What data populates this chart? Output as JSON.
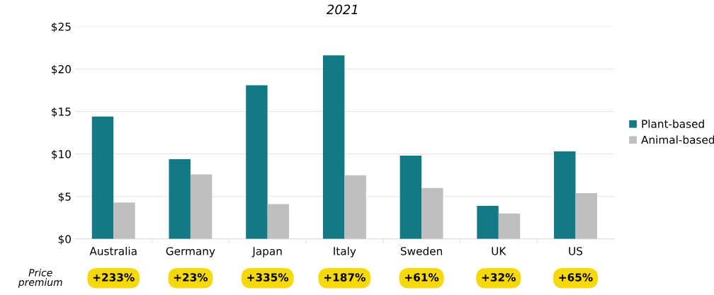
{
  "chart_data": {
    "type": "bar",
    "subtitle": "2021",
    "categories": [
      "Australia",
      "Germany",
      "Japan",
      "Italy",
      "Sweden",
      "UK",
      "US"
    ],
    "series": [
      {
        "name": "Plant-based",
        "color": "#137a85",
        "values": [
          14.4,
          9.4,
          18.1,
          21.6,
          9.8,
          3.9,
          10.3
        ]
      },
      {
        "name": "Animal-based",
        "color": "#bfbfbf",
        "values": [
          4.3,
          7.6,
          4.1,
          7.5,
          6.0,
          3.0,
          5.4
        ]
      }
    ],
    "ylim": [
      0,
      25
    ],
    "yticks": [
      {
        "value": 0,
        "label": "$0"
      },
      {
        "value": 5,
        "label": "$5"
      },
      {
        "value": 10,
        "label": "$10"
      },
      {
        "value": 15,
        "label": "$15"
      },
      {
        "value": 20,
        "label": "$20"
      },
      {
        "value": 25,
        "label": "$25"
      }
    ],
    "grid": "y",
    "legend": "right",
    "annotations": [
      "Price premium",
      "+233%",
      "+23%",
      "+335%",
      "+187%",
      "+61%",
      "+32%",
      "+65%"
    ]
  }
}
